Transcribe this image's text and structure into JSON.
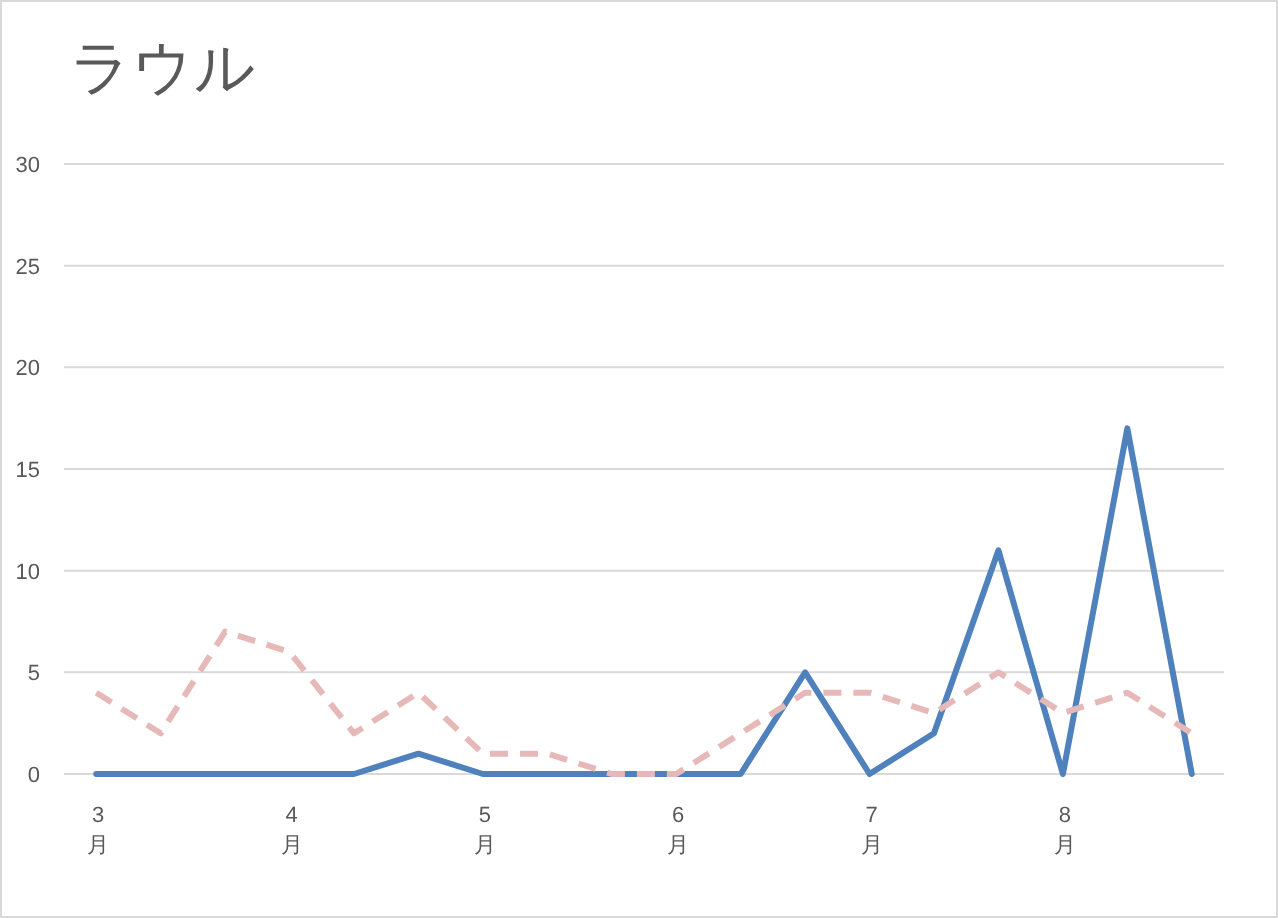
{
  "chart_data": {
    "type": "line",
    "title": "ラウル",
    "categories": [
      "3月",
      null,
      null,
      "4月",
      null,
      null,
      "5月",
      null,
      null,
      "6月",
      null,
      null,
      "7月",
      null,
      null,
      "8月",
      null,
      null
    ],
    "series": [
      {
        "color": "#4f81bd",
        "line_style": "solid",
        "values": [
          0,
          0,
          0,
          0,
          0,
          1,
          0,
          0,
          0,
          0,
          0,
          5,
          0,
          2,
          11,
          0,
          17,
          0
        ]
      },
      {
        "color": "#e6b9b8",
        "line_style": "dashed",
        "values": [
          4,
          2,
          7,
          6,
          2,
          4,
          1,
          1,
          0,
          0,
          2,
          4,
          4,
          3,
          5,
          3,
          4,
          2
        ]
      }
    ],
    "ylim": [
      0,
      30
    ],
    "yticks": [
      0,
      5,
      10,
      15,
      20,
      25,
      30
    ],
    "grid": "y",
    "marker": "none"
  }
}
